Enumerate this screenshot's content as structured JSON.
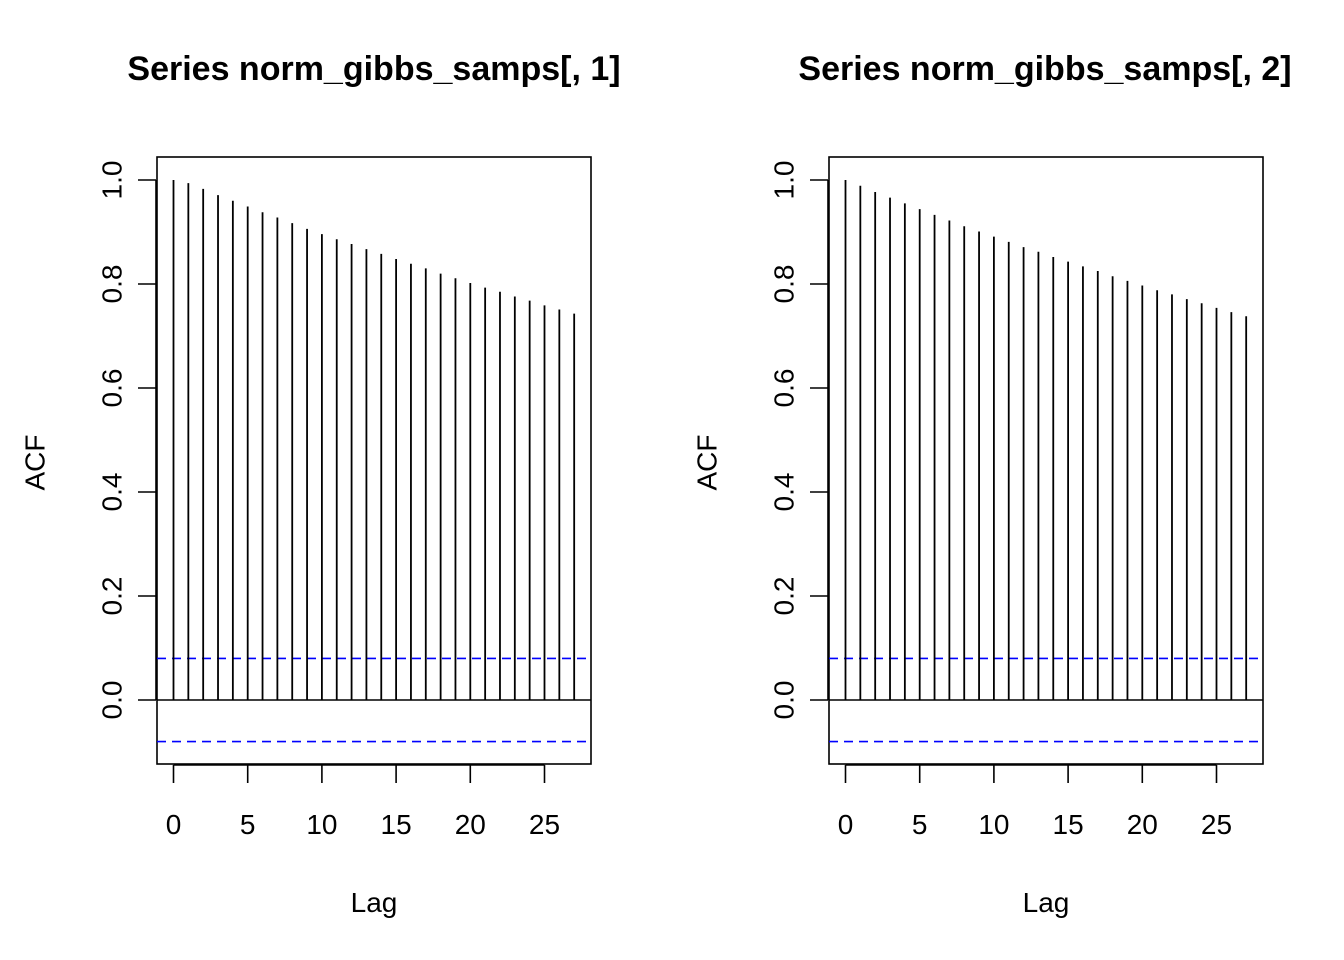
{
  "chart_data": [
    {
      "type": "bar",
      "title": "Series  norm_gibbs_samps[, 1]",
      "xlabel": "Lag",
      "ylabel": "ACF",
      "xlim": [
        -1,
        28
      ],
      "ylim": [
        -0.12,
        1.05
      ],
      "x_ticks": [
        0,
        5,
        10,
        15,
        20,
        25
      ],
      "y_ticks": [
        0.0,
        0.2,
        0.4,
        0.6,
        0.8,
        1.0
      ],
      "x_tick_labels": [
        "0",
        "5",
        "10",
        "15",
        "20",
        "25"
      ],
      "y_tick_labels": [
        "0.0",
        "0.2",
        "0.4",
        "0.6",
        "0.8",
        "1.0"
      ],
      "lags": [
        0,
        1,
        2,
        3,
        4,
        5,
        6,
        7,
        8,
        9,
        10,
        11,
        12,
        13,
        14,
        15,
        16,
        17,
        18,
        19,
        20,
        21,
        22,
        23,
        24,
        25,
        26,
        27
      ],
      "values": [
        1.0,
        0.994,
        0.983,
        0.971,
        0.96,
        0.949,
        0.938,
        0.928,
        0.917,
        0.906,
        0.896,
        0.886,
        0.877,
        0.867,
        0.858,
        0.848,
        0.839,
        0.83,
        0.82,
        0.811,
        0.802,
        0.793,
        0.785,
        0.776,
        0.768,
        0.759,
        0.751,
        0.743
      ],
      "conf_bounds": [
        0.08,
        -0.08
      ],
      "conf_line_color": "#0000ff",
      "grid": false
    },
    {
      "type": "bar",
      "title": "Series  norm_gibbs_samps[, 2]",
      "xlabel": "Lag",
      "ylabel": "ACF",
      "xlim": [
        -1,
        28
      ],
      "ylim": [
        -0.12,
        1.05
      ],
      "x_ticks": [
        0,
        5,
        10,
        15,
        20,
        25
      ],
      "y_ticks": [
        0.0,
        0.2,
        0.4,
        0.6,
        0.8,
        1.0
      ],
      "x_tick_labels": [
        "0",
        "5",
        "10",
        "15",
        "20",
        "25"
      ],
      "y_tick_labels": [
        "0.0",
        "0.2",
        "0.4",
        "0.6",
        "0.8",
        "1.0"
      ],
      "lags": [
        0,
        1,
        2,
        3,
        4,
        5,
        6,
        7,
        8,
        9,
        10,
        11,
        12,
        13,
        14,
        15,
        16,
        17,
        18,
        19,
        20,
        21,
        22,
        23,
        24,
        25,
        26,
        27
      ],
      "values": [
        1.0,
        0.989,
        0.977,
        0.966,
        0.955,
        0.944,
        0.933,
        0.922,
        0.911,
        0.901,
        0.891,
        0.881,
        0.871,
        0.862,
        0.852,
        0.843,
        0.834,
        0.825,
        0.815,
        0.806,
        0.797,
        0.788,
        0.78,
        0.771,
        0.763,
        0.754,
        0.746,
        0.738
      ],
      "conf_bounds": [
        0.08,
        -0.08
      ],
      "conf_line_color": "#0000ff",
      "grid": false
    }
  ]
}
